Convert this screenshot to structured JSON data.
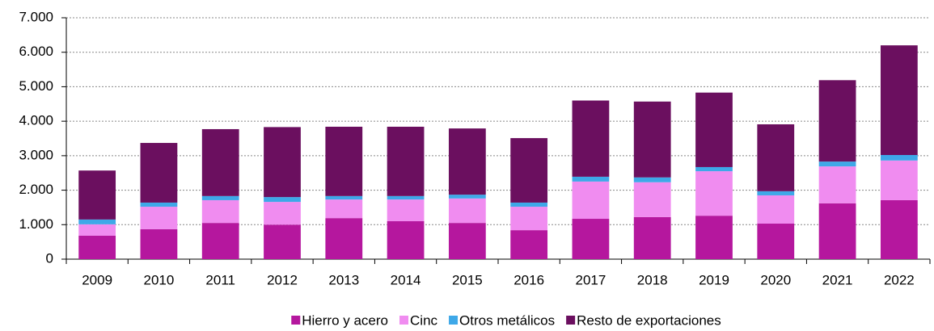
{
  "chart_data": {
    "type": "stacked_bar",
    "categories": [
      "2009",
      "2010",
      "2011",
      "2012",
      "2013",
      "2014",
      "2015",
      "2016",
      "2017",
      "2018",
      "2019",
      "2020",
      "2021",
      "2022"
    ],
    "series": [
      {
        "name": "Hierro y acero",
        "color": "#b5179e",
        "values": [
          680,
          870,
          1050,
          1000,
          1190,
          1100,
          1050,
          840,
          1170,
          1220,
          1260,
          1030,
          1620,
          1710
        ]
      },
      {
        "name": "Cinc",
        "color": "#f08cf0",
        "values": [
          330,
          650,
          660,
          660,
          540,
          630,
          710,
          680,
          1080,
          1010,
          1290,
          820,
          1070,
          1150
        ]
      },
      {
        "name": "Otros metálicos",
        "color": "#3ea8e8",
        "values": [
          140,
          120,
          120,
          140,
          100,
          100,
          110,
          120,
          140,
          140,
          120,
          120,
          140,
          160
        ]
      },
      {
        "name": "Resto de exportaciones",
        "color": "#6b0f5f",
        "values": [
          1420,
          1730,
          1940,
          2030,
          2010,
          2010,
          1920,
          1870,
          2210,
          2200,
          2160,
          1940,
          2360,
          3180
        ]
      }
    ],
    "ylim": [
      0,
      7000
    ],
    "yticks": [
      0,
      {
        "value": 1000,
        "label": "1.000"
      },
      {
        "value": 2000,
        "label": "2.000"
      },
      {
        "value": 3000,
        "label": "3.000"
      },
      {
        "value": 4000,
        "label": "4.000"
      },
      {
        "value": 5000,
        "label": "5.000"
      },
      {
        "value": 6000,
        "label": "6.000"
      },
      {
        "value": 7000,
        "label": "7.000"
      }
    ],
    "grid": true,
    "legend": "bottom"
  }
}
